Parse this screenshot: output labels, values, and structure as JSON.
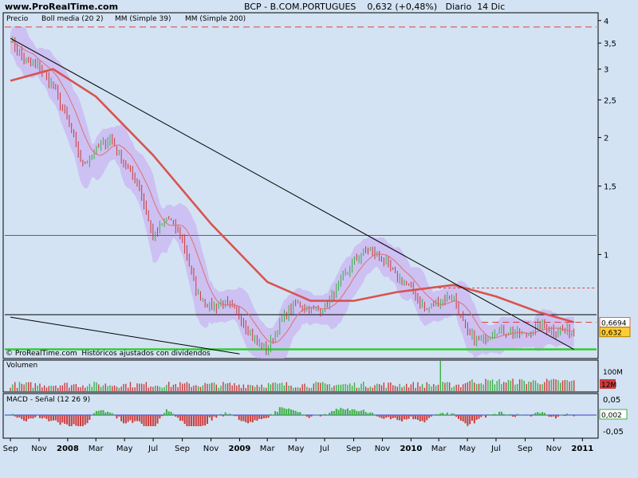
{
  "header": {
    "site": "www.ProRealTime.com",
    "title": "BCP - B.COM.PORTUGUES    0,632 (+0,48%)   Diario  14 Dic"
  },
  "legend": {
    "price": "Precio",
    "boll": "Boll media (20 2)",
    "ma39": "MM (Simple 39)",
    "ma200": "MM (Simple 200)"
  },
  "watermark": "© ProRealTime.com  Históricos ajustados con dividendos",
  "price_axis": {
    "ticks": [
      {
        "label": "4",
        "v": 4
      },
      {
        "label": "3,5",
        "v": 3.5
      },
      {
        "label": "3",
        "v": 3
      },
      {
        "label": "2,5",
        "v": 2.5
      },
      {
        "label": "2",
        "v": 2
      },
      {
        "label": "1,5",
        "v": 1.5
      },
      {
        "label": "1",
        "v": 1
      }
    ],
    "tags": [
      {
        "label": "0,6694",
        "v": 0.6694,
        "color": "#ffffff",
        "border": "#e06060",
        "text": "#d04040"
      },
      {
        "label": "0,632",
        "v": 0.632,
        "color": "#ffcc33",
        "border": "#b08000",
        "text": "#000000"
      }
    ]
  },
  "volume_panel": {
    "title": "Volumen",
    "tick": "100M",
    "tag": "12M"
  },
  "macd_panel": {
    "title": "MACD - Señal (12 26 9)",
    "ticks": [
      {
        "label": "0,05",
        "v": 0.05
      },
      {
        "label": "-0,05",
        "v": -0.05
      }
    ],
    "tag": "0,002"
  },
  "time_axis": [
    {
      "label": "Sep",
      "bold": false
    },
    {
      "label": "Nov",
      "bold": false
    },
    {
      "label": "2008",
      "bold": true
    },
    {
      "label": "Mar",
      "bold": false
    },
    {
      "label": "May",
      "bold": false
    },
    {
      "label": "Jul",
      "bold": false
    },
    {
      "label": "Sep",
      "bold": false
    },
    {
      "label": "Nov",
      "bold": false
    },
    {
      "label": "2009",
      "bold": true
    },
    {
      "label": "Mar",
      "bold": false
    },
    {
      "label": "May",
      "bold": false
    },
    {
      "label": "Jul",
      "bold": false
    },
    {
      "label": "Sep",
      "bold": false
    },
    {
      "label": "Nov",
      "bold": false
    },
    {
      "label": "2010",
      "bold": true
    },
    {
      "label": "Mar",
      "bold": false
    },
    {
      "label": "May",
      "bold": false
    },
    {
      "label": "Jul",
      "bold": false
    },
    {
      "label": "Sep",
      "bold": false
    },
    {
      "label": "Nov",
      "bold": false
    },
    {
      "label": "2011",
      "bold": true
    }
  ],
  "colors": {
    "background": "#d3e3f3",
    "candle_up": "#3cb043",
    "candle_down": "#cc3b3b",
    "boll": "#c9b6f2",
    "ma39": "#e06e6e",
    "ma200": "#d9534f",
    "support": "#33cc33"
  },
  "chart_data": {
    "type": "candlestick",
    "ticker": "BCP - B.COM.PORTUGUES",
    "last": "0,632",
    "change": "+0,48%",
    "scale": "log",
    "ylim": [
      0.54,
      4.15
    ],
    "price_series": [
      {
        "x": "2007-09-01",
        "y": 3.6
      },
      {
        "x": "2007-10-01",
        "y": 3.15
      },
      {
        "x": "2007-11-01",
        "y": 3.05
      },
      {
        "x": "2007-12-01",
        "y": 2.7
      },
      {
        "x": "2008-01-01",
        "y": 2.2
      },
      {
        "x": "2008-02-01",
        "y": 1.7
      },
      {
        "x": "2008-03-01",
        "y": 1.85
      },
      {
        "x": "2008-04-01",
        "y": 2.0
      },
      {
        "x": "2008-05-01",
        "y": 1.7
      },
      {
        "x": "2008-06-01",
        "y": 1.5
      },
      {
        "x": "2008-07-01",
        "y": 1.1
      },
      {
        "x": "2008-08-01",
        "y": 1.25
      },
      {
        "x": "2008-09-01",
        "y": 1.1
      },
      {
        "x": "2008-10-01",
        "y": 0.8
      },
      {
        "x": "2008-11-01",
        "y": 0.73
      },
      {
        "x": "2008-12-01",
        "y": 0.75
      },
      {
        "x": "2009-01-01",
        "y": 0.7
      },
      {
        "x": "2009-02-01",
        "y": 0.6
      },
      {
        "x": "2009-03-01",
        "y": 0.57
      },
      {
        "x": "2009-04-01",
        "y": 0.68
      },
      {
        "x": "2009-05-01",
        "y": 0.75
      },
      {
        "x": "2009-06-01",
        "y": 0.72
      },
      {
        "x": "2009-07-01",
        "y": 0.73
      },
      {
        "x": "2009-08-01",
        "y": 0.83
      },
      {
        "x": "2009-09-01",
        "y": 0.96
      },
      {
        "x": "2009-10-01",
        "y": 1.03
      },
      {
        "x": "2009-11-01",
        "y": 0.97
      },
      {
        "x": "2009-12-01",
        "y": 0.88
      },
      {
        "x": "2010-01-01",
        "y": 0.82
      },
      {
        "x": "2010-02-01",
        "y": 0.72
      },
      {
        "x": "2010-03-01",
        "y": 0.76
      },
      {
        "x": "2010-04-01",
        "y": 0.78
      },
      {
        "x": "2010-05-01",
        "y": 0.62
      },
      {
        "x": "2010-06-01",
        "y": 0.6
      },
      {
        "x": "2010-07-01",
        "y": 0.64
      },
      {
        "x": "2010-08-01",
        "y": 0.63
      },
      {
        "x": "2010-09-01",
        "y": 0.62
      },
      {
        "x": "2010-10-01",
        "y": 0.66
      },
      {
        "x": "2010-11-01",
        "y": 0.64
      },
      {
        "x": "2010-12-14",
        "y": 0.632
      }
    ],
    "ma200": [
      {
        "x": "2007-09-01",
        "y": 2.8
      },
      {
        "x": "2007-12-01",
        "y": 3.0
      },
      {
        "x": "2008-03-01",
        "y": 2.55
      },
      {
        "x": "2008-07-01",
        "y": 1.8
      },
      {
        "x": "2008-11-01",
        "y": 1.2
      },
      {
        "x": "2009-03-01",
        "y": 0.85
      },
      {
        "x": "2009-06-01",
        "y": 0.76
      },
      {
        "x": "2009-09-01",
        "y": 0.76
      },
      {
        "x": "2009-12-01",
        "y": 0.8
      },
      {
        "x": "2010-04-01",
        "y": 0.835
      },
      {
        "x": "2010-07-01",
        "y": 0.78
      },
      {
        "x": "2010-10-01",
        "y": 0.71
      },
      {
        "x": "2010-12-14",
        "y": 0.6694
      }
    ],
    "horizontal_levels": [
      {
        "y": 3.85,
        "style": "dashed",
        "color": "#e04040"
      },
      {
        "y": 1.12,
        "style": "solid",
        "color": "#cc3333"
      },
      {
        "y": 0.82,
        "style": "dotted",
        "color": "#e04040"
      },
      {
        "y": 0.7,
        "style": "solid",
        "color": "#000000"
      },
      {
        "y": 0.6694,
        "style": "dashed",
        "color": "#e04040"
      },
      {
        "y": 0.57,
        "style": "solid",
        "color": "#33cc33"
      }
    ],
    "trendlines": [
      {
        "from": {
          "x": "2007-09-01",
          "y": 3.6
        },
        "to": {
          "x": "2010-12-14",
          "y": 0.57
        }
      },
      {
        "from": {
          "x": "2007-09-01",
          "y": 0.69
        },
        "to": {
          "x": "2009-01-01",
          "y": 0.555
        }
      }
    ]
  }
}
